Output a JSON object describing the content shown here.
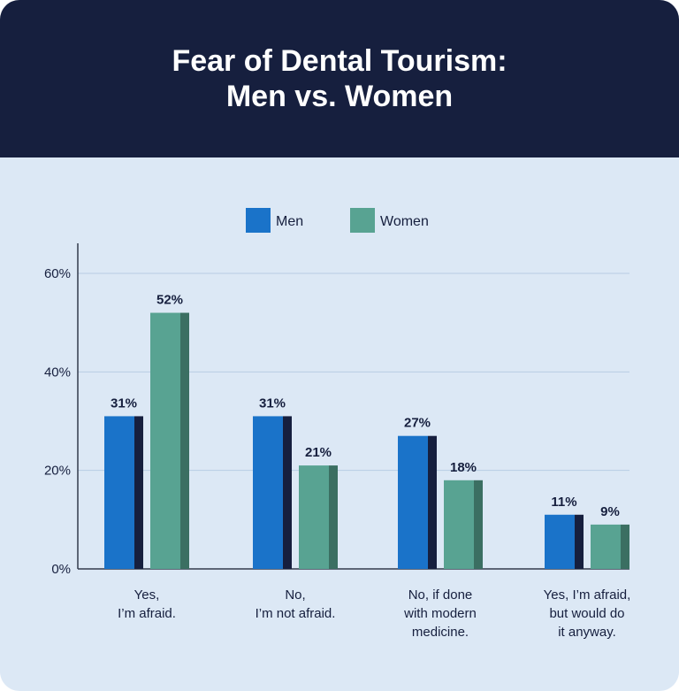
{
  "colors": {
    "header_bg": "#161f3e",
    "panel_bg": "#dce8f5",
    "men": "#1a73c9",
    "men_side": "#161f3e",
    "women": "#58a392",
    "women_side": "#3b6f62",
    "grid": "#b7cde3",
    "axis": "#333a4d"
  },
  "chart_data": {
    "type": "bar",
    "title": "Fear of Dental Tourism:\nMen vs. Women",
    "categories": [
      "Yes,\nI’m afraid.",
      "No,\nI’m not afraid.",
      "No, if done\nwith modern\nmedicine.",
      "Yes, I’m afraid,\nbut would do\nit anyway."
    ],
    "series": [
      {
        "name": "Men",
        "values": [
          31,
          31,
          27,
          11
        ],
        "labels": [
          "31%",
          "31%",
          "27%",
          "11%"
        ]
      },
      {
        "name": "Women",
        "values": [
          52,
          21,
          18,
          9
        ],
        "labels": [
          "52%",
          "21%",
          "18%",
          "9%"
        ]
      }
    ],
    "ylim": [
      0,
      60
    ],
    "yticks": [
      0,
      20,
      40,
      60
    ],
    "ytick_labels": [
      "0%",
      "20%",
      "40%",
      "60%"
    ],
    "grid": true,
    "legend": "top-center"
  }
}
